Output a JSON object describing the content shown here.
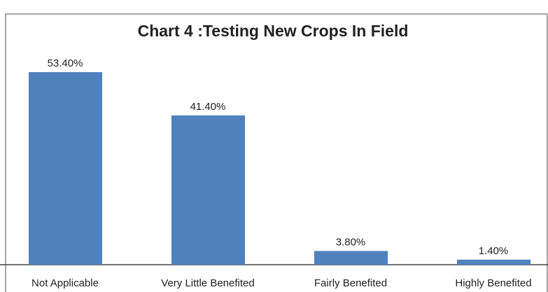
{
  "chart_data": {
    "type": "bar",
    "title": "Chart 4 :Testing New Crops In Field",
    "categories": [
      "Not Applicable",
      "Very Little Benefited",
      "Fairly Benefited",
      "Highly Benefited"
    ],
    "values": [
      53.4,
      41.4,
      3.8,
      1.4
    ],
    "value_labels": [
      "53.40%",
      "41.40%",
      "3.80%",
      "1.40%"
    ],
    "color": "#4f81bd",
    "ylim": [
      0,
      60
    ]
  }
}
